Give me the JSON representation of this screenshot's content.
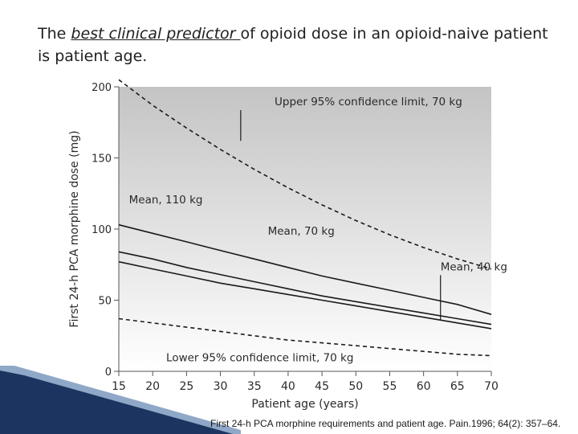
{
  "title": {
    "prefix": "The ",
    "emphasis": "best clinical predictor ",
    "suffix": "of opioid dose in an opioid-naive patient is patient age."
  },
  "citation": "First 24-h PCA morphine requirements and patient age. Pain.1996; 64(2): 357–64.",
  "colors": {
    "gradient_top": "#c4c4c4",
    "gradient_bottom": "#ffffff",
    "line": "#1a1a1a",
    "text": "#2a2a2a",
    "deco_dark": "#1b3560",
    "deco_light": "#8fa8c8"
  },
  "chart_data": {
    "type": "line",
    "title": "",
    "xlabel": "Patient age (years)",
    "ylabel": "First 24-h PCA morphine dose (mg)",
    "xlim": [
      15,
      70
    ],
    "ylim": [
      0,
      200
    ],
    "xticks": [
      15,
      20,
      25,
      30,
      35,
      40,
      45,
      50,
      55,
      60,
      65,
      70
    ],
    "yticks": [
      0,
      50,
      100,
      150,
      200
    ],
    "x": [
      15,
      20,
      25,
      30,
      35,
      40,
      45,
      50,
      55,
      60,
      65,
      70
    ],
    "series": [
      {
        "name": "Upper 95% confidence limit, 70 kg",
        "style": "dashed",
        "values": [
          205,
          187,
          171,
          156,
          142,
          129,
          117,
          106,
          96,
          87,
          79,
          72
        ]
      },
      {
        "name": "Mean, 110 kg",
        "style": "solid",
        "values": [
          103,
          97,
          91,
          85,
          79,
          73,
          67,
          62,
          57,
          52,
          47,
          40
        ]
      },
      {
        "name": "Mean, 70 kg",
        "style": "solid",
        "values": [
          84,
          79,
          73,
          68,
          63,
          58,
          53,
          49,
          45,
          41,
          37,
          33
        ]
      },
      {
        "name": "Mean, 40 kg",
        "style": "solid",
        "values": [
          77,
          72,
          67,
          62,
          58,
          54,
          50,
          46,
          42,
          38,
          34,
          30
        ]
      },
      {
        "name": "Lower 95% confidence limit, 70 kg",
        "style": "dashed",
        "values": [
          37,
          34,
          31,
          28,
          25,
          22,
          20,
          18,
          16,
          14,
          12,
          11
        ]
      }
    ],
    "annotations": [
      {
        "text": "Upper 95% confidence limit, 70 kg",
        "x": 38,
        "y": 187,
        "arrow_to": [
          33,
          162
        ]
      },
      {
        "text": "Mean, 110 kg",
        "x": 16.5,
        "y": 118
      },
      {
        "text": "Mean, 70 kg",
        "x": 37,
        "y": 96
      },
      {
        "text": "Mean, 40 kg",
        "x": 62.5,
        "y": 71,
        "arrow_to": [
          62.5,
          36
        ]
      },
      {
        "text": "Lower 95% confidence limit, 70 kg",
        "x": 22,
        "y": 7
      }
    ]
  }
}
